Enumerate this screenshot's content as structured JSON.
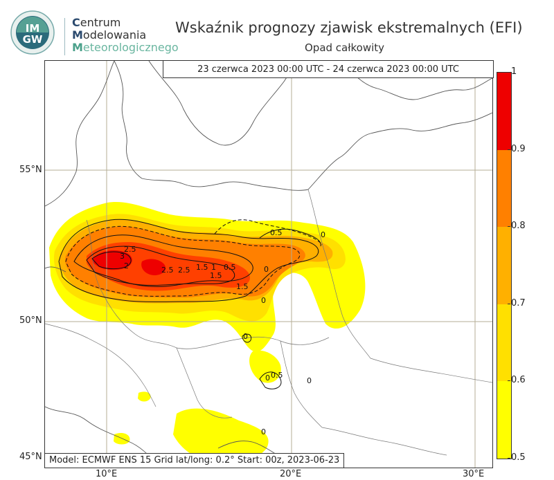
{
  "header": {
    "logo_text_top": "IM",
    "logo_text_bottom": "GW",
    "org_line1_cap": "C",
    "org_line1_rest": "entrum",
    "org_line2_cap": "M",
    "org_line2_rest": "odelowania",
    "org_line3_cap": "M",
    "org_line3_rest": "eteorologicznego",
    "title": "Wskaźnik prognozy zjawisk ekstremalnych (EFI)",
    "subtitle": "Opad całkowity"
  },
  "map": {
    "date_range": "23 czerwca 2023 00:00 UTC - 24 czerwca 2023 00:00 UTC",
    "model_info": "Model: ECMWF  ENS 15  Grid lat/long: 0.2°  Start: 00z, 2023-06-23",
    "lat_labels": [
      "55°N",
      "50°N",
      "45°N"
    ],
    "lon_labels": [
      "10°E",
      "20°E",
      "30°E"
    ],
    "contour_labels": [
      "2.5",
      "3",
      "2",
      "2.5",
      "2.5",
      "1.5",
      "1",
      "0.5",
      "1.5",
      "1.5",
      "0.5",
      "0",
      "0",
      "0",
      "0",
      "0",
      "0.5",
      "0",
      "0"
    ],
    "colors": {
      "efi_0_5": "#ffff00",
      "efi_0_6": "#ffe000",
      "efi_0_7": "#ffb000",
      "efi_0_8": "#ff8000",
      "efi_0_9": "#ff4000",
      "efi_1_0": "#ee0000",
      "coast": "#555555",
      "grid": "#b5ad95"
    }
  },
  "colorbar": {
    "labels": [
      "1",
      "0.9",
      "0.8",
      "0.7",
      "0.6",
      "0.5"
    ],
    "stops": [
      {
        "value": 0.5,
        "color": "#ffff00"
      },
      {
        "value": 0.6,
        "color": "#ffe000"
      },
      {
        "value": 0.7,
        "color": "#ffb000"
      },
      {
        "value": 0.8,
        "color": "#ff8000"
      },
      {
        "value": 0.9,
        "color": "#ff4000"
      },
      {
        "value": 1.0,
        "color": "#ee0000"
      }
    ]
  }
}
